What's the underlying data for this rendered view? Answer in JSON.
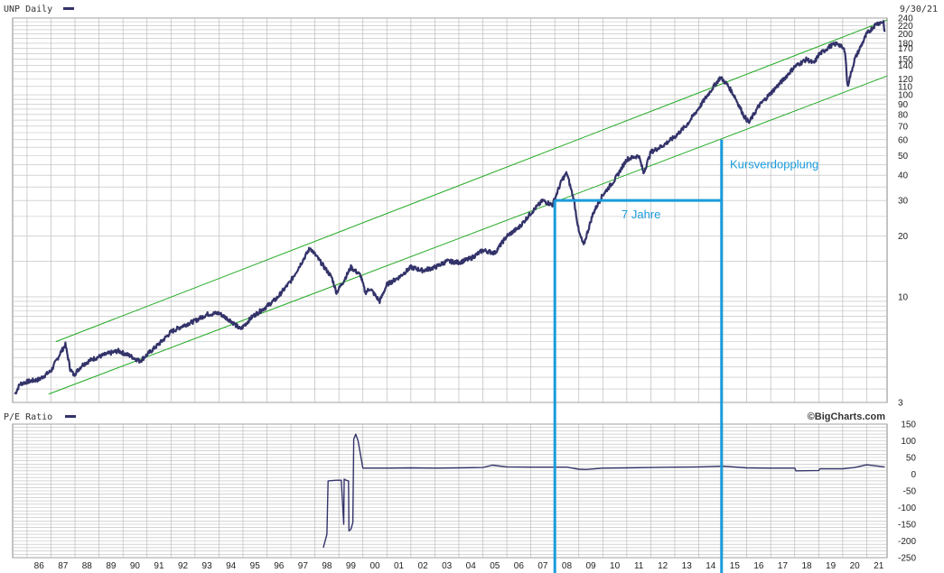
{
  "header": {
    "price_label": "UNP Daily",
    "date": "9/30/21",
    "pe_label": "P/E Ratio",
    "brand": "©BigCharts.com"
  },
  "colors": {
    "price": "#33336a",
    "channel": "#22aa22",
    "annotation": "#1a9bdc",
    "grid": "#bcbcbc"
  },
  "chart_data": [
    {
      "type": "line",
      "title": "UNP Daily",
      "y_scale": "log",
      "ylim": [
        3,
        240
      ],
      "xlim": [
        1985.4,
        2021.85
      ],
      "x_ticks": [
        "86",
        "87",
        "88",
        "89",
        "90",
        "91",
        "92",
        "93",
        "94",
        "95",
        "96",
        "97",
        "98",
        "99",
        "00",
        "01",
        "02",
        "03",
        "04",
        "05",
        "06",
        "07",
        "08",
        "09",
        "10",
        "11",
        "12",
        "13",
        "14",
        "15",
        "16",
        "17",
        "18",
        "19",
        "20",
        "21"
      ],
      "y_ticks": [
        3,
        10,
        20,
        30,
        40,
        50,
        60,
        70,
        80,
        90,
        100,
        110,
        120,
        140,
        150,
        170,
        180,
        200,
        220,
        240
      ],
      "grid": true,
      "series": [
        {
          "x": [
            1985.5,
            1985.7,
            1986.0,
            1986.5,
            1987.0,
            1987.4,
            1987.6,
            1987.8,
            1987.95,
            1988.3,
            1988.7,
            1989.3,
            1989.8,
            1990.3,
            1990.7,
            1991.1,
            1991.6,
            1992.0,
            1992.5,
            1993.0,
            1993.5,
            1994.0,
            1994.5,
            1994.9,
            1995.4,
            1995.9,
            1996.4,
            1997.0,
            1997.4,
            1997.8,
            1998.3,
            1998.7,
            1998.9,
            1999.2,
            1999.5,
            1999.9,
            2000.1,
            2000.3,
            2000.7,
            2001.0,
            2001.5,
            2002.0,
            2002.5,
            2003.0,
            2003.5,
            2004.0,
            2004.5,
            2005.0,
            2005.5,
            2006.0,
            2006.5,
            2007.0,
            2007.5,
            2007.9,
            2008.3,
            2008.5,
            2008.8,
            2009.0,
            2009.2,
            2009.6,
            2010.0,
            2010.5,
            2011.0,
            2011.5,
            2011.7,
            2012.0,
            2012.5,
            2013.0,
            2013.5,
            2014.0,
            2014.5,
            2014.9,
            2015.2,
            2015.5,
            2015.9,
            2016.1,
            2016.5,
            2017.0,
            2017.5,
            2018.0,
            2018.5,
            2018.8,
            2019.0,
            2019.5,
            2019.8,
            2020.1,
            2020.2,
            2020.5,
            2021.0,
            2021.4,
            2021.7,
            2021.75
          ],
          "values": [
            3.3,
            3.7,
            3.8,
            3.9,
            4.3,
            5.3,
            5.8,
            4.4,
            4.1,
            4.6,
            4.9,
            5.2,
            5.4,
            5.1,
            4.8,
            5.3,
            6.0,
            6.7,
            7.2,
            7.6,
            8.2,
            8.3,
            7.6,
            6.9,
            8.0,
            8.8,
            9.8,
            12.0,
            14.5,
            17.5,
            14.5,
            12.5,
            10.5,
            12.0,
            14.0,
            12.8,
            10.5,
            11.0,
            9.5,
            11.5,
            12.5,
            14.0,
            13.5,
            14.0,
            15.0,
            14.8,
            15.5,
            17.0,
            16.5,
            20.0,
            22.0,
            26.0,
            30.0,
            28.5,
            38.0,
            41.0,
            30.0,
            21.0,
            18.0,
            26.0,
            32.0,
            38.0,
            48.0,
            50.0,
            41.0,
            52.0,
            56.0,
            62.0,
            71.0,
            86.0,
            105.0,
            122.0,
            112.0,
            98.0,
            78.0,
            73.0,
            88.0,
            102.0,
            118.0,
            138.0,
            150.0,
            143.0,
            158.0,
            175.0,
            180.0,
            165.0,
            110.0,
            150.0,
            200.0,
            225.0,
            230.0,
            205.0
          ]
        }
      ],
      "trend_lines": [
        {
          "x": [
            1987.2,
            2021.85
          ],
          "values": [
            6.0,
            235.0
          ]
        },
        {
          "x": [
            1986.9,
            2021.85
          ],
          "values": [
            3.3,
            124.0
          ]
        }
      ],
      "annotations": [
        {
          "text": "Kursverdopplung"
        },
        {
          "text": "7 Jahre",
          "x": [
            2008.0,
            2014.95
          ],
          "value": 30
        }
      ]
    },
    {
      "type": "line",
      "title": "P/E Ratio",
      "ylim": [
        -250,
        150
      ],
      "y_ticks": [
        150,
        100,
        50,
        0,
        -50,
        -100,
        -150,
        -200,
        -250
      ],
      "grid": true,
      "series": [
        {
          "x": [
            1998.35,
            1998.5,
            1998.55,
            1998.9,
            1999.1,
            1999.2,
            1999.22,
            1999.3,
            1999.4,
            1999.42,
            1999.5,
            1999.58,
            1999.62,
            1999.7,
            1999.8,
            2000.0,
            2001.0,
            2002.0,
            2003.0,
            2004.0,
            2005.0,
            2005.4,
            2006.0,
            2007.0,
            2008.0,
            2008.5,
            2009.0,
            2009.3,
            2010.0,
            2011.0,
            2012.0,
            2013.0,
            2014.0,
            2015.0,
            2016.0,
            2017.0,
            2018.0,
            2018.05,
            2019.0,
            2019.05,
            2020.0,
            2020.5,
            2021.0,
            2021.75
          ],
          "values": [
            -220,
            -180,
            -20,
            -18,
            -18,
            -150,
            -15,
            -18,
            -20,
            -170,
            -165,
            -145,
            105,
            120,
            100,
            18,
            18,
            19,
            18,
            19,
            20,
            27,
            22,
            21,
            21,
            21,
            15,
            14,
            18,
            19,
            20,
            21,
            22,
            24,
            19,
            18,
            18,
            10,
            11,
            16,
            16,
            20,
            28,
            22
          ]
        }
      ]
    }
  ]
}
